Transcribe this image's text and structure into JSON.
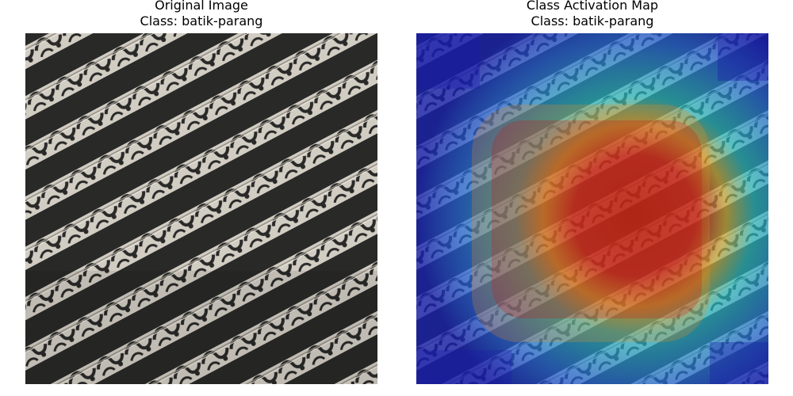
{
  "panels": [
    {
      "title_line1": "Original Image",
      "title_line2": "Class: batik-parang"
    },
    {
      "title_line1": "Class Activation Map",
      "title_line2": "Class: batik-parang"
    }
  ],
  "colors": {
    "batik_dark": "#1c1c1b",
    "batik_light": "#cfcac0",
    "cam_hot": "#b00000",
    "cam_warm": "#f2c020",
    "cam_mid": "#30d8c0",
    "cam_cold": "#1a1aa8"
  }
}
